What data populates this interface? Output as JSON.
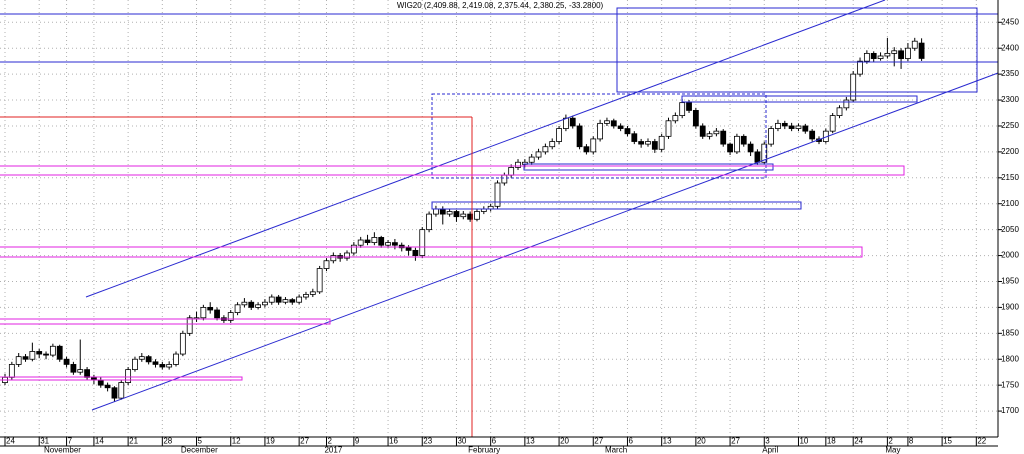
{
  "chart_data": {
    "type": "candlestick",
    "title": "WIG20 (2,409.88, 2,419.08, 2,375.44, 2,380.25, -33.2800)",
    "categories": [
      "24",
      null,
      null,
      null,
      null,
      "31",
      null,
      null,
      null,
      "7",
      null,
      null,
      null,
      "14",
      null,
      null,
      null,
      null,
      "21",
      null,
      null,
      null,
      null,
      "28",
      null,
      null,
      null,
      null,
      "5",
      null,
      null,
      null,
      null,
      "12",
      null,
      null,
      null,
      null,
      "19",
      null,
      null,
      null,
      null,
      "27",
      null,
      null,
      null,
      "2",
      null,
      null,
      null,
      "9",
      null,
      null,
      null,
      null,
      "16",
      null,
      null,
      null,
      null,
      "23",
      null,
      null,
      null,
      null,
      "30",
      null,
      null,
      null,
      null,
      "6",
      null,
      null,
      null,
      null,
      "13",
      null,
      null,
      null,
      null,
      "20",
      null,
      null,
      null,
      null,
      "27",
      null,
      null,
      null,
      null,
      "6",
      null,
      null,
      null,
      null,
      "13",
      null,
      null,
      null,
      null,
      "20",
      null,
      null,
      null,
      null,
      "27",
      null,
      null,
      null,
      null,
      "3",
      null,
      null,
      null,
      null,
      "10",
      null,
      null,
      null,
      "18",
      null,
      null,
      null,
      "24",
      null,
      null,
      null,
      null,
      "2",
      null,
      null,
      "8",
      null,
      null,
      null,
      null,
      "15",
      null,
      null,
      null,
      null,
      "22",
      null,
      null
    ],
    "months": [
      null,
      null,
      null,
      null,
      null,
      null,
      "November",
      null,
      null,
      null,
      null,
      null,
      null,
      null,
      null,
      null,
      null,
      null,
      null,
      null,
      null,
      null,
      null,
      null,
      null,
      null,
      "December",
      null,
      null,
      null,
      null,
      null,
      null,
      null,
      null,
      null,
      null,
      null,
      null,
      null,
      null,
      null,
      null,
      null,
      null,
      null,
      null,
      "2017",
      null,
      null,
      null,
      null,
      null,
      null,
      null,
      null,
      null,
      null,
      null,
      null,
      null,
      null,
      null,
      null,
      null,
      null,
      null,
      null,
      "February",
      null,
      null,
      null,
      null,
      null,
      null,
      null,
      null,
      null,
      null,
      null,
      null,
      null,
      null,
      null,
      null,
      null,
      null,
      null,
      "March",
      null,
      null,
      null,
      null,
      null,
      null,
      null,
      null,
      null,
      null,
      null,
      null,
      null,
      null,
      null,
      null,
      null,
      null,
      null,
      null,
      null,
      null,
      "April",
      null,
      null,
      null,
      null,
      null,
      null,
      null,
      null,
      null,
      null,
      null,
      null,
      null,
      null,
      null,
      null,
      null,
      "May",
      null,
      null,
      null,
      null,
      null,
      null,
      null,
      null,
      null,
      null,
      null,
      null,
      null,
      null,
      null
    ],
    "open": [
      1755,
      1765,
      1790,
      1805,
      1800,
      1815,
      1810,
      1808,
      1825,
      1800,
      1790,
      1775,
      1780,
      1765,
      1760,
      1750,
      1745,
      1725,
      1755,
      1780,
      1800,
      1805,
      1795,
      1790,
      1785,
      1790,
      1810,
      1850,
      1878,
      1880,
      1900,
      1895,
      1880,
      1875,
      1890,
      1905,
      1910,
      1900,
      1905,
      1910,
      1920,
      1910,
      1915,
      1910,
      1920,
      1925,
      1930,
      1975,
      1990,
      2000,
      1995,
      2005,
      2020,
      2030,
      2025,
      2035,
      2020,
      2025,
      2020,
      2015,
      2010,
      2000,
      2050,
      2080,
      2090,
      2080,
      2085,
      2075,
      2080,
      2070,
      2085,
      2090,
      2095,
      2140,
      2155,
      2170,
      2176,
      2180,
      2190,
      2200,
      2210,
      2220,
      2245,
      2265,
      2250,
      2210,
      2200,
      2225,
      2255,
      2260,
      2250,
      2245,
      2235,
      2220,
      2215,
      2220,
      2205,
      2230,
      2260,
      2270,
      2295,
      2280,
      2250,
      2230,
      2235,
      2240,
      2215,
      2200,
      2230,
      2215,
      2200,
      2180,
      2215,
      2245,
      2255,
      2250,
      2245,
      2250,
      2240,
      2225,
      2220,
      2240,
      2270,
      2285,
      2300,
      2350,
      2375,
      2390,
      2380,
      2385,
      2390,
      2395,
      2380,
      2400,
      2409.88,
      null,
      null,
      null,
      null,
      null,
      null,
      null,
      null,
      null,
      null
    ],
    "high": [
      1772,
      1795,
      1812,
      1810,
      1832,
      1820,
      1815,
      1830,
      1828,
      1805,
      1795,
      1838,
      1785,
      1770,
      1765,
      1755,
      1748,
      1760,
      1785,
      1805,
      1812,
      1808,
      1800,
      1795,
      1796,
      1815,
      1855,
      1885,
      1892,
      1905,
      1910,
      1900,
      1885,
      1895,
      1910,
      1918,
      1914,
      1910,
      1916,
      1925,
      1924,
      1920,
      1918,
      1925,
      1930,
      1936,
      1980,
      1995,
      2006,
      2005,
      2010,
      2026,
      2036,
      2040,
      2045,
      2038,
      2030,
      2032,
      2025,
      2020,
      2015,
      2055,
      2085,
      2096,
      2095,
      2090,
      2088,
      2086,
      2085,
      2090,
      2095,
      2100,
      2145,
      2160,
      2176,
      2186,
      2186,
      2196,
      2206,
      2216,
      2226,
      2250,
      2272,
      2270,
      2255,
      2215,
      2230,
      2262,
      2266,
      2264,
      2255,
      2250,
      2240,
      2225,
      2226,
      2225,
      2235,
      2266,
      2276,
      2302,
      2300,
      2285,
      2255,
      2240,
      2246,
      2244,
      2218,
      2235,
      2234,
      2220,
      2205,
      2220,
      2250,
      2262,
      2260,
      2256,
      2255,
      2254,
      2244,
      2230,
      2245,
      2275,
      2290,
      2306,
      2356,
      2382,
      2396,
      2394,
      2392,
      2420,
      2402,
      2400,
      2410,
      2420,
      2419.08,
      null,
      null,
      null,
      null,
      null,
      null,
      null,
      null,
      null,
      null
    ],
    "low": [
      1750,
      1760,
      1785,
      1795,
      1796,
      1802,
      1800,
      1804,
      1795,
      1784,
      1770,
      1770,
      1760,
      1752,
      1745,
      1738,
      1718,
      1722,
      1750,
      1776,
      1795,
      1790,
      1784,
      1780,
      1780,
      1786,
      1806,
      1845,
      1872,
      1875,
      1888,
      1875,
      1870,
      1870,
      1885,
      1900,
      1895,
      1896,
      1900,
      1905,
      1905,
      1906,
      1905,
      1906,
      1915,
      1920,
      1926,
      1970,
      1985,
      1988,
      1990,
      2000,
      2015,
      2020,
      2020,
      2015,
      2015,
      2012,
      2008,
      2000,
      1990,
      1995,
      2045,
      2075,
      2060,
      2075,
      2065,
      2070,
      2065,
      2066,
      2080,
      2085,
      2090,
      2135,
      2150,
      2165,
      2170,
      2175,
      2185,
      2195,
      2205,
      2215,
      2240,
      2245,
      2205,
      2195,
      2195,
      2220,
      2250,
      2245,
      2240,
      2230,
      2215,
      2208,
      2210,
      2198,
      2200,
      2225,
      2255,
      2265,
      2275,
      2245,
      2225,
      2224,
      2230,
      2210,
      2194,
      2196,
      2210,
      2192,
      2175,
      2176,
      2210,
      2240,
      2244,
      2240,
      2240,
      2235,
      2220,
      2215,
      2216,
      2236,
      2265,
      2280,
      2296,
      2345,
      2370,
      2374,
      2376,
      2380,
      2365,
      2360,
      2375,
      2395,
      2375.44,
      null,
      null,
      null,
      null,
      null,
      null,
      null,
      null,
      null,
      null
    ],
    "close": [
      1765,
      1790,
      1805,
      1800,
      1815,
      1810,
      1808,
      1825,
      1800,
      1790,
      1775,
      1780,
      1765,
      1760,
      1750,
      1745,
      1725,
      1755,
      1780,
      1800,
      1805,
      1795,
      1790,
      1785,
      1790,
      1810,
      1850,
      1880,
      1880,
      1900,
      1895,
      1880,
      1875,
      1890,
      1905,
      1910,
      1900,
      1905,
      1910,
      1920,
      1910,
      1915,
      1910,
      1920,
      1925,
      1930,
      1975,
      1990,
      2000,
      1995,
      2005,
      2020,
      2030,
      2025,
      2035,
      2020,
      2025,
      2020,
      2015,
      2010,
      2000,
      2050,
      2080,
      2090,
      2080,
      2085,
      2075,
      2080,
      2070,
      2085,
      2090,
      2095,
      2140,
      2155,
      2170,
      2180,
      2180,
      2190,
      2200,
      2210,
      2220,
      2245,
      2265,
      2250,
      2210,
      2200,
      2225,
      2255,
      2260,
      2250,
      2245,
      2235,
      2220,
      2215,
      2220,
      2205,
      2230,
      2260,
      2270,
      2295,
      2280,
      2250,
      2230,
      2235,
      2240,
      2215,
      2200,
      2230,
      2215,
      2200,
      2180,
      2215,
      2245,
      2255,
      2250,
      2245,
      2250,
      2240,
      2225,
      2220,
      2240,
      2270,
      2285,
      2300,
      2350,
      2375,
      2390,
      2380,
      2385,
      2390,
      2395,
      2380,
      2400,
      2413.53,
      2380.25,
      null,
      null,
      null,
      null,
      null,
      null,
      null,
      null,
      null,
      null
    ],
    "up_color": "#ffffff",
    "down_color": "#000000",
    "ylim": [
      1650,
      2493
    ],
    "yticks": [
      1700,
      1750,
      1800,
      1850,
      1900,
      1950,
      2000,
      2050,
      2100,
      2150,
      2200,
      2250,
      2300,
      2350,
      2400,
      2450
    ],
    "grid": true
  }
}
